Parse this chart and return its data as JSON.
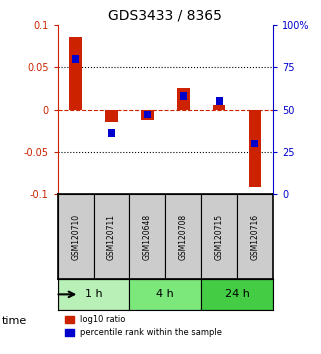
{
  "title": "GDS3433 / 8365",
  "samples": [
    "GSM120710",
    "GSM120711",
    "GSM120648",
    "GSM120708",
    "GSM120715",
    "GSM120716"
  ],
  "log10_ratio": [
    0.085,
    -0.015,
    -0.012,
    0.025,
    0.005,
    -0.091
  ],
  "percentile_rank": [
    80,
    36,
    47,
    58,
    55,
    30
  ],
  "groups": [
    {
      "label": "1 h",
      "indices": [
        0,
        1
      ],
      "color": "#b8f0b8"
    },
    {
      "label": "4 h",
      "indices": [
        2,
        3
      ],
      "color": "#7ce87c"
    },
    {
      "label": "24 h",
      "indices": [
        4,
        5
      ],
      "color": "#44cc44"
    }
  ],
  "ylim_left": [
    -0.1,
    0.1
  ],
  "ylim_right": [
    0,
    100
  ],
  "yticks_left": [
    -0.1,
    -0.05,
    0,
    0.05,
    0.1
  ],
  "ytick_labels_left": [
    "-0.1",
    "-0.05",
    "0",
    "0.05",
    "0.1"
  ],
  "yticks_right": [
    0,
    25,
    50,
    75,
    100
  ],
  "ytick_labels_right": [
    "0",
    "25",
    "50",
    "75",
    "100%"
  ],
  "hlines": [
    0.05,
    -0.05
  ],
  "bar_width": 0.35,
  "red_color": "#cc2200",
  "blue_color": "#0000cc",
  "sample_bg_color": "#cccccc",
  "legend_red": "log10 ratio",
  "legend_blue": "percentile rank within the sample",
  "xlabel_time": "time"
}
